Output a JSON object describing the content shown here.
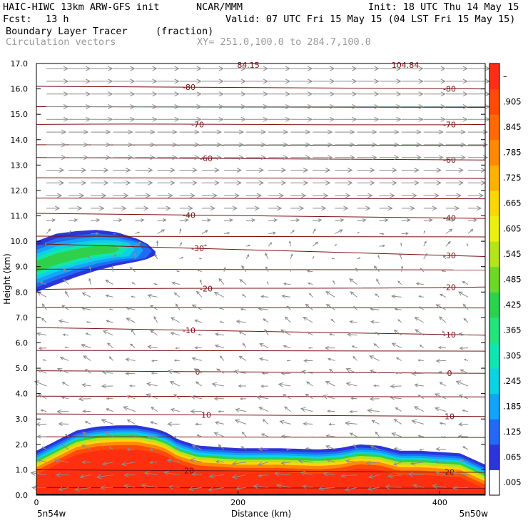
{
  "header": {
    "model": "HAIC-HIWC 13km ARW-GFS init",
    "center": "NCAR/MMM",
    "init": "Init: 18 UTC Thu 14 May 15",
    "fcst_label": "Fcst:",
    "fcst_value": "13 h",
    "valid": "Valid: 07 UTC Fri 15 May 15 (04 LST Fri 15 May 15)",
    "field": "Boundary Layer Tracer",
    "field_units": "(fraction)",
    "vectors": "Circulation vectors",
    "xy": "XY= 251.0,100.0 to 284.7,100.0"
  },
  "colors": {
    "contour": "#7a1010",
    "vector": "#8c8c8c",
    "colorbar": [
      "#ffffff",
      "#2b35d8",
      "#1f6cf2",
      "#13a4f8",
      "#0fd1e6",
      "#12e6b0",
      "#25e27a",
      "#2fd14a",
      "#6ad92a",
      "#b4e41e",
      "#ecf012",
      "#ffd40a",
      "#ffb007",
      "#ff8a06",
      "#ff6a05",
      "#ff4a08",
      "#ff2f10"
    ]
  },
  "chart_data": {
    "type": "heatmap",
    "title": "Boundary Layer Tracer",
    "units": "(fraction)",
    "xlabel": "Distance (km)",
    "ylabel": "Height (km)",
    "xlim": [
      0,
      445
    ],
    "ylim": [
      0,
      17
    ],
    "x_ticks": [
      "0",
      "200",
      "400"
    ],
    "x_tick_values": [
      0,
      200,
      400
    ],
    "x_end_labels": [
      "5n54w",
      "5n50w"
    ],
    "y_ticks": [
      "0.0",
      "1.0",
      "2.0",
      "3.0",
      "4.0",
      "5.0",
      "6.0",
      "7.0",
      "8.0",
      "9.0",
      "10.0",
      "11.0",
      "12.0",
      "13.0",
      "14.0",
      "15.0",
      "16.0",
      "17.0"
    ],
    "colorbar_labels": [
      ".005",
      ".065",
      ".125",
      ".185",
      ".245",
      ".305",
      ".365",
      ".425",
      ".485",
      ".545",
      ".605",
      ".665",
      ".725",
      ".785",
      ".845",
      ".905",
      "–"
    ],
    "boundary_layer_top": {
      "x": [
        0,
        20,
        40,
        60,
        80,
        100,
        120,
        130,
        140,
        160,
        180,
        200,
        240,
        280,
        300,
        320,
        340,
        360,
        380,
        420,
        445
      ],
      "y": [
        1.75,
        2.15,
        2.55,
        2.7,
        2.75,
        2.75,
        2.6,
        2.45,
        2.2,
        1.95,
        1.9,
        1.85,
        1.85,
        1.8,
        1.85,
        2.0,
        1.95,
        1.75,
        1.75,
        1.65,
        1.2
      ]
    },
    "elevated_layer": {
      "x": [
        0,
        20,
        40,
        60,
        80,
        100,
        110,
        118
      ],
      "top": [
        10.0,
        10.3,
        10.4,
        10.45,
        10.35,
        10.1,
        9.9,
        9.6
      ],
      "bottom": [
        8.0,
        8.3,
        8.6,
        8.85,
        9.05,
        9.2,
        9.3,
        9.45
      ]
    },
    "contours": [
      {
        "label": "-80",
        "left_km": 16.1,
        "right_km": 16.0
      },
      {
        "label": "-70",
        "left_km": 14.6,
        "right_km": 14.6
      },
      {
        "label": "-60",
        "left_km": 13.3,
        "right_km": 13.2
      },
      {
        "label": "-40",
        "left_km": 11.1,
        "right_km": 10.9
      },
      {
        "label": "-30",
        "left_km": 9.9,
        "right_km": 9.4
      },
      {
        "label": "-20",
        "left_km": 8.1,
        "right_km": 8.2
      },
      {
        "label": "-10",
        "left_km": 6.6,
        "right_km": 6.3
      },
      {
        "label": "0",
        "left_km": 4.9,
        "right_km": 4.8
      },
      {
        "label": "10",
        "left_km": 3.2,
        "right_km": 3.1
      },
      {
        "label": "20",
        "left_km": 1.0,
        "right_km": 0.9
      }
    ],
    "extra_contour_heights_km": [
      15.3,
      13.8,
      12.5,
      11.7,
      10.2,
      8.9,
      7.4,
      5.7,
      3.9,
      2.3,
      0.3
    ],
    "top_labels": [
      "84.15",
      "104.84"
    ],
    "vectors": {
      "note_rows": "heights of vector rows (km)",
      "rows": [
        16.8,
        16.3,
        15.8,
        15.3,
        14.8,
        14.3,
        13.8,
        13.3,
        12.8,
        12.3,
        11.8,
        11.3,
        10.8,
        10.3,
        9.8,
        9.3,
        8.8,
        8.3,
        7.8,
        7.3,
        6.8,
        6.3,
        5.8,
        5.3,
        4.8,
        4.3,
        3.8,
        3.3,
        2.8,
        2.3,
        1.8,
        1.3,
        0.8,
        0.3
      ],
      "u": [
        1.0,
        1.0,
        1.0,
        1.0,
        1.0,
        0.9,
        0.9,
        0.9,
        0.8,
        0.8,
        0.7,
        0.6,
        0.4,
        0.2,
        0.1,
        0.0,
        -0.1,
        -0.2,
        -0.3,
        -0.3,
        -0.3,
        -0.3,
        -0.3,
        -0.3,
        -0.4,
        -0.4,
        -0.4,
        -0.4,
        -0.4,
        -0.3,
        -0.3,
        -0.5,
        -0.6,
        -0.6
      ],
      "w": [
        0.0,
        0.0,
        0.0,
        0.0,
        0.0,
        0.0,
        0.0,
        0.0,
        0.0,
        0.0,
        0.0,
        0.0,
        0.05,
        0.1,
        0.12,
        0.15,
        0.15,
        0.15,
        0.15,
        0.15,
        0.15,
        0.15,
        0.1,
        0.1,
        0.1,
        0.1,
        0.1,
        0.1,
        0.1,
        0.1,
        0.1,
        0.0,
        0.0,
        0.0
      ]
    }
  }
}
